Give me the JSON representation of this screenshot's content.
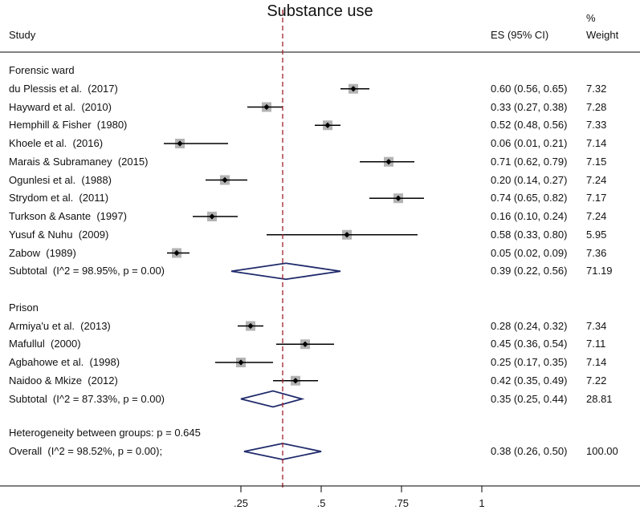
{
  "chart_data": {
    "type": "forest",
    "title": "Substance use",
    "columns": {
      "study": "Study",
      "es": "ES (95% CI)",
      "weight_line1": "%",
      "weight_line2": "Weight"
    },
    "xaxis": {
      "ticks": [
        0.25,
        0.5,
        0.75,
        1
      ],
      "tick_labels": [
        ".25",
        ".5",
        ".75",
        "1"
      ],
      "xlim": [
        0,
        1
      ]
    },
    "reference_line": 0.38,
    "groups": [
      {
        "name": "Forensic ward",
        "studies": [
          {
            "label": "du Plessis et al.  (2017)",
            "es": 0.6,
            "lo": 0.56,
            "hi": 0.65,
            "es_text": "0.60 (0.56, 0.65)",
            "weight": "7.32"
          },
          {
            "label": "Hayward et al.  (2010)",
            "es": 0.33,
            "lo": 0.27,
            "hi": 0.38,
            "es_text": "0.33 (0.27, 0.38)",
            "weight": "7.28"
          },
          {
            "label": "Hemphill & Fisher  (1980)",
            "es": 0.52,
            "lo": 0.48,
            "hi": 0.56,
            "es_text": "0.52 (0.48, 0.56)",
            "weight": "7.33"
          },
          {
            "label": "Khoele et al.  (2016)",
            "es": 0.06,
            "lo": 0.01,
            "hi": 0.21,
            "es_text": "0.06 (0.01, 0.21)",
            "weight": "7.14"
          },
          {
            "label": "Marais & Subramaney  (2015)",
            "es": 0.71,
            "lo": 0.62,
            "hi": 0.79,
            "es_text": "0.71 (0.62, 0.79)",
            "weight": "7.15"
          },
          {
            "label": "Ogunlesi et al.  (1988)",
            "es": 0.2,
            "lo": 0.14,
            "hi": 0.27,
            "es_text": "0.20 (0.14, 0.27)",
            "weight": "7.24"
          },
          {
            "label": "Strydom et al.  (2011)",
            "es": 0.74,
            "lo": 0.65,
            "hi": 0.82,
            "es_text": "0.74 (0.65, 0.82)",
            "weight": "7.17"
          },
          {
            "label": "Turkson & Asante  (1997)",
            "es": 0.16,
            "lo": 0.1,
            "hi": 0.24,
            "es_text": "0.16 (0.10, 0.24)",
            "weight": "7.24"
          },
          {
            "label": "Yusuf & Nuhu  (2009)",
            "es": 0.58,
            "lo": 0.33,
            "hi": 0.8,
            "es_text": "0.58 (0.33, 0.80)",
            "weight": "5.95"
          },
          {
            "label": "Zabow  (1989)",
            "es": 0.05,
            "lo": 0.02,
            "hi": 0.09,
            "es_text": "0.05 (0.02, 0.09)",
            "weight": "7.36"
          }
        ],
        "subtotal": {
          "label": "Subtotal  (I^2 = 98.95%, p = 0.00)",
          "es": 0.39,
          "lo": 0.22,
          "hi": 0.56,
          "es_text": "0.39 (0.22, 0.56)",
          "weight": "71.19"
        }
      },
      {
        "name": "Prison",
        "studies": [
          {
            "label": "Armiya'u et al.  (2013)",
            "es": 0.28,
            "lo": 0.24,
            "hi": 0.32,
            "es_text": "0.28 (0.24, 0.32)",
            "weight": "7.34"
          },
          {
            "label": "Mafullul  (2000)",
            "es": 0.45,
            "lo": 0.36,
            "hi": 0.54,
            "es_text": "0.45 (0.36, 0.54)",
            "weight": "7.11"
          },
          {
            "label": "Agbahowe et al.  (1998)",
            "es": 0.25,
            "lo": 0.17,
            "hi": 0.35,
            "es_text": "0.25 (0.17, 0.35)",
            "weight": "7.14"
          },
          {
            "label": "Naidoo & Mkize  (2012)",
            "es": 0.42,
            "lo": 0.35,
            "hi": 0.49,
            "es_text": "0.42 (0.35, 0.49)",
            "weight": "7.22"
          }
        ],
        "subtotal": {
          "label": "Subtotal  (I^2 = 87.33%, p = 0.00)",
          "es": 0.35,
          "lo": 0.25,
          "hi": 0.44,
          "es_text": "0.35 (0.25, 0.44)",
          "weight": "28.81"
        }
      }
    ],
    "heterogeneity": "Heterogeneity between groups: p = 0.645",
    "overall": {
      "label": "Overall  (I^2 = 98.52%, p = 0.00);",
      "es": 0.38,
      "lo": 0.26,
      "hi": 0.5,
      "es_text": "0.38 (0.26, 0.50)",
      "weight": "100.00"
    },
    "colors": {
      "diamond": "#1f2a6b",
      "reference": "#a0202a",
      "box": "#b3b3b3",
      "marker": "#000000"
    }
  }
}
